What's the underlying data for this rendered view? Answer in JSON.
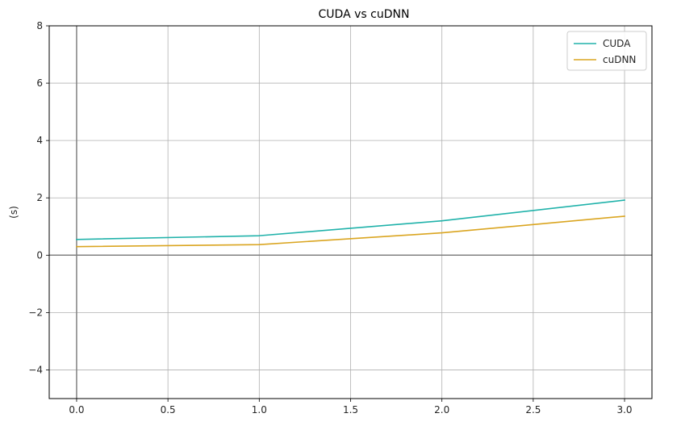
{
  "chart_data": {
    "type": "line",
    "title": "CUDA vs cuDNN",
    "xlabel": "",
    "ylabel": "(s)",
    "xlim": [
      -0.15,
      3.15
    ],
    "ylim": [
      -5,
      8
    ],
    "x_ticks": [
      0.0,
      0.5,
      1.0,
      1.5,
      2.0,
      2.5,
      3.0
    ],
    "x_tick_labels": [
      "0.0",
      "0.5",
      "1.0",
      "1.5",
      "2.0",
      "2.5",
      "3.0"
    ],
    "y_ticks": [
      -4,
      -2,
      0,
      2,
      4,
      6,
      8
    ],
    "y_tick_labels": [
      "−4",
      "−2",
      "0",
      "2",
      "4",
      "6",
      "8"
    ],
    "grid": true,
    "legend_position": "top-right",
    "reference_lines": {
      "x": 0,
      "y": 0,
      "color": "#808080"
    },
    "x": [
      0,
      1,
      2,
      3
    ],
    "series": [
      {
        "name": "CUDA",
        "color": "#20b2aa",
        "values": [
          0.55,
          0.68,
          1.2,
          1.92
        ]
      },
      {
        "name": "cuDNN",
        "color": "#daa520",
        "values": [
          0.3,
          0.37,
          0.78,
          1.36
        ]
      }
    ]
  }
}
